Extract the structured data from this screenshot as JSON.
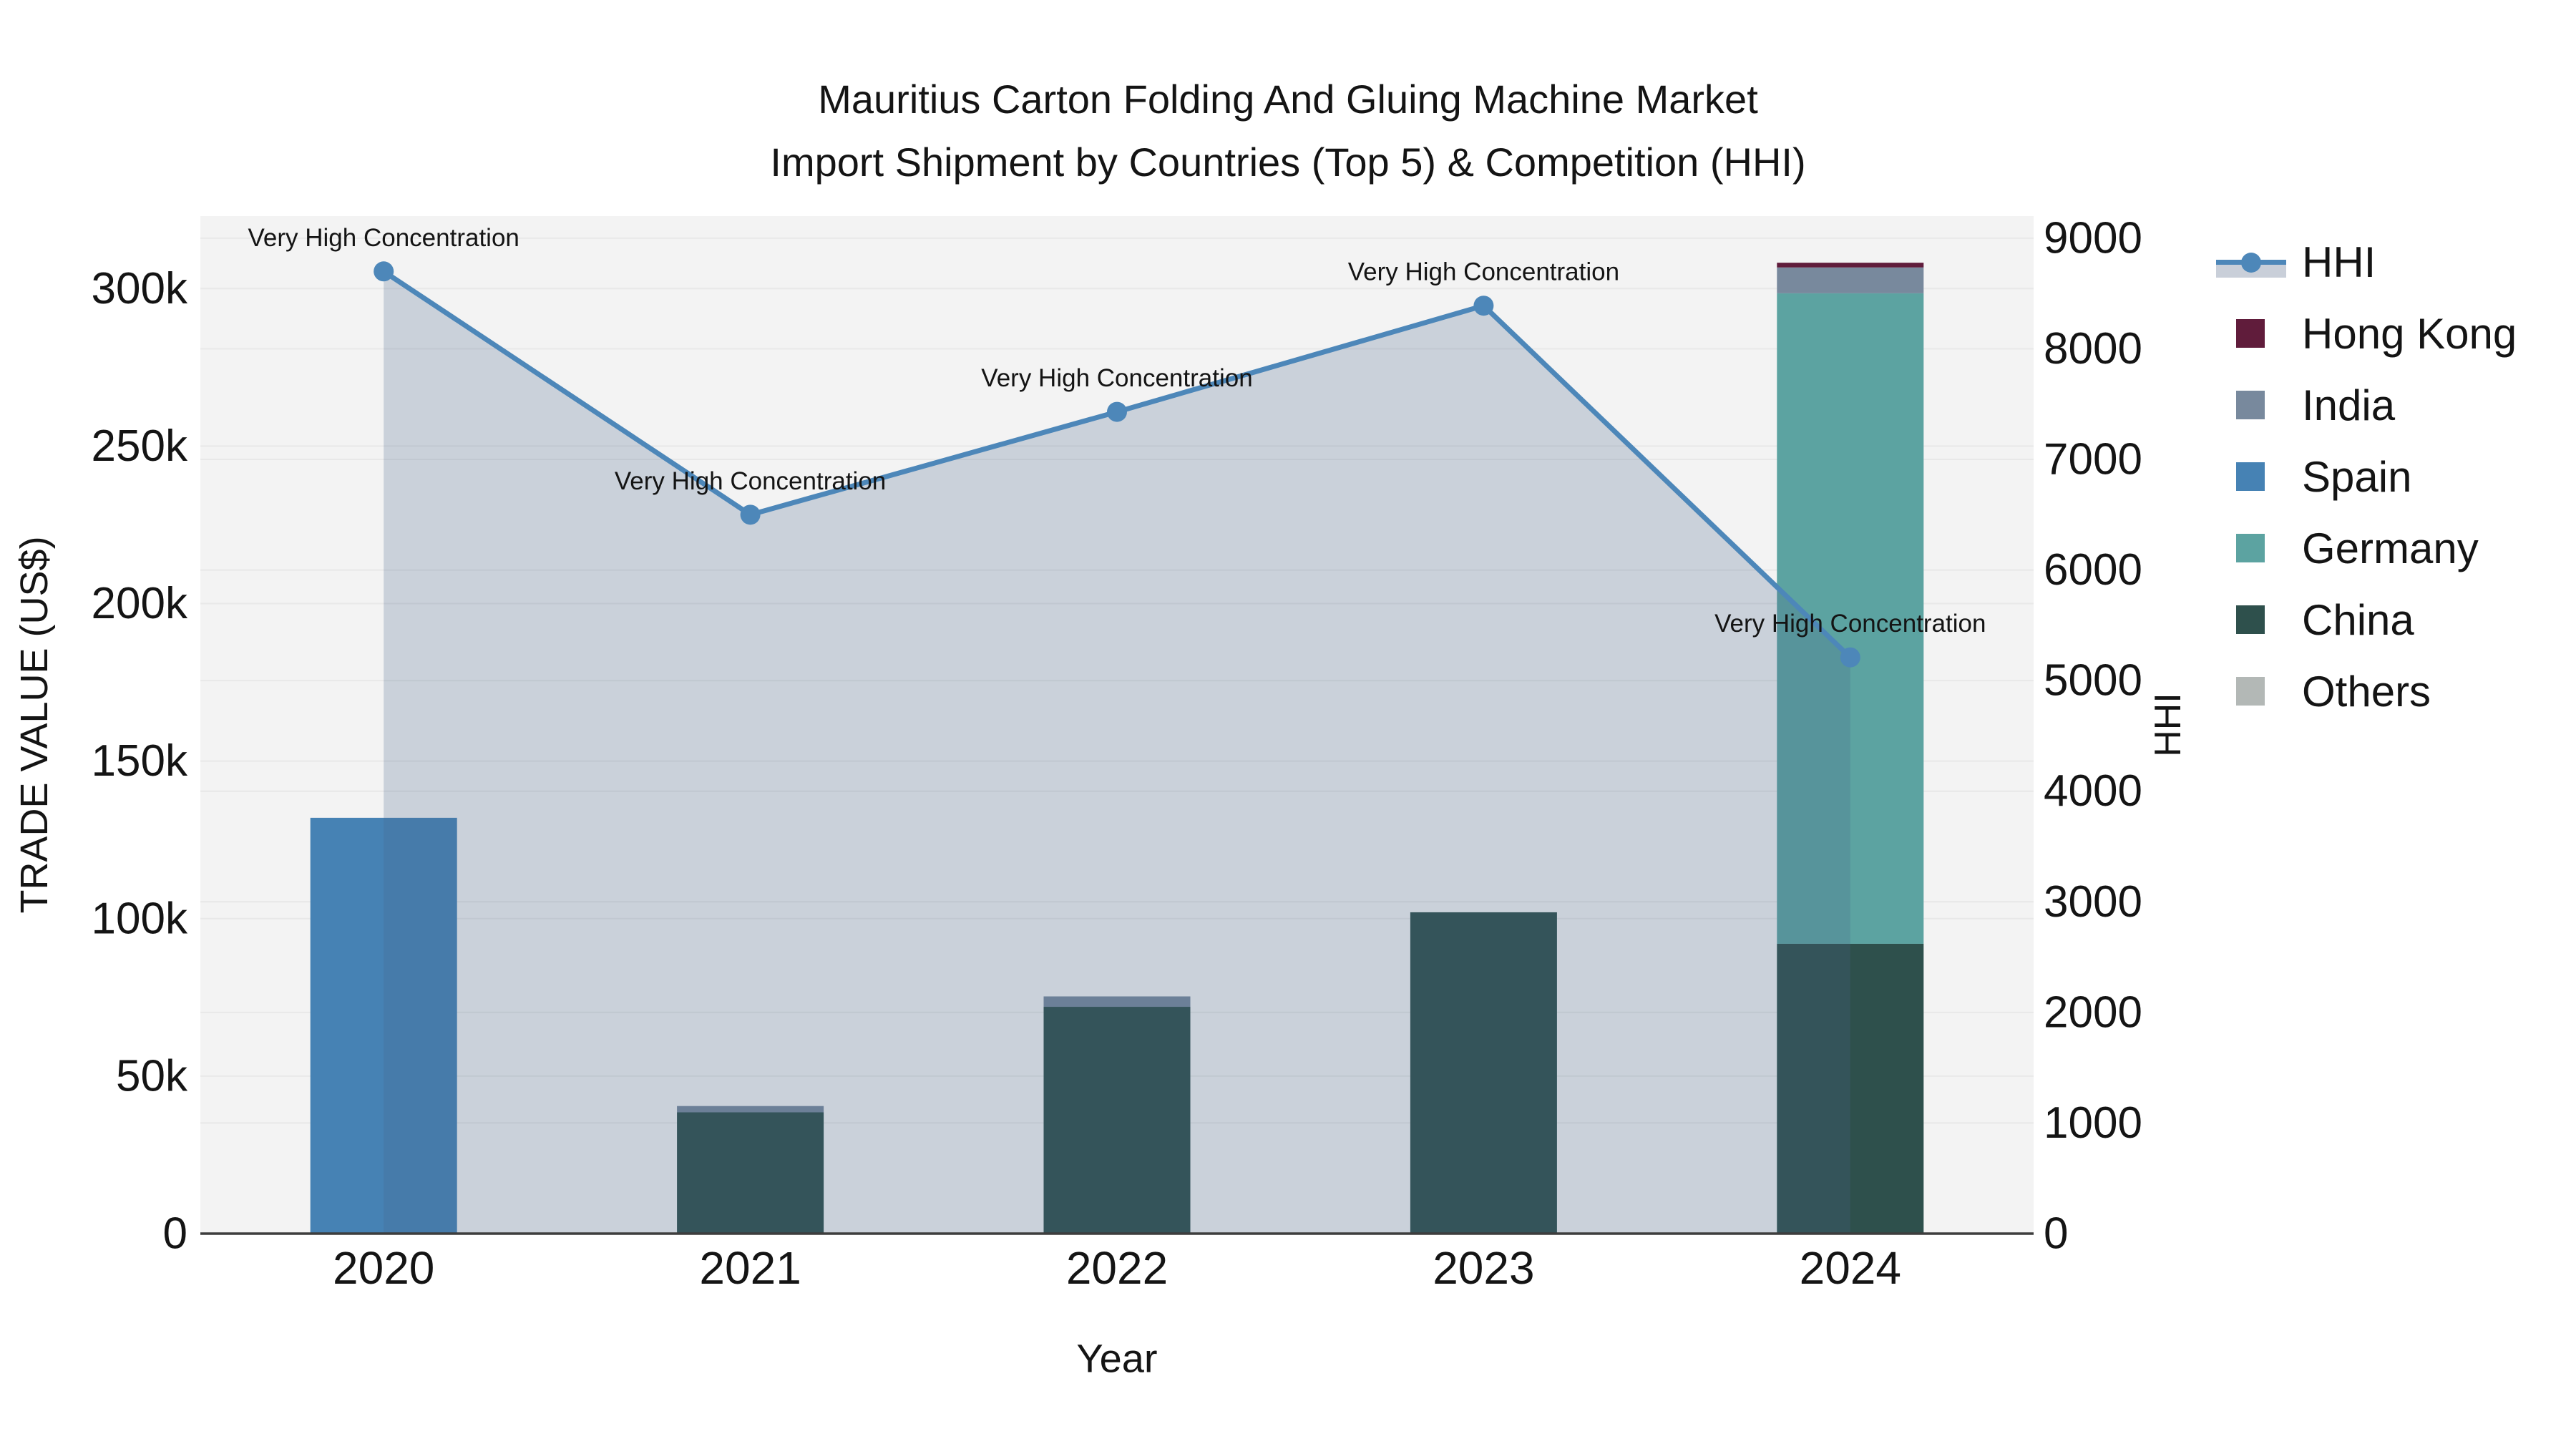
{
  "header": {
    "title_line1": "Mauritius Carton Folding And Gluing Machine Market",
    "title_line2": "Import Shipment by Countries (Top 5) & Competition (HHI)"
  },
  "chart_data": {
    "type": "bar",
    "subtype": "stacked-bars-with-line-overlay",
    "categories": [
      "2020",
      "2021",
      "2022",
      "2023",
      "2024"
    ],
    "xlabel": "Year",
    "ylabel_left": "TRADE VALUE (US$)",
    "ylabel_right": "HHI",
    "ylim_left": [
      0,
      323000
    ],
    "ylim_right": [
      0,
      9200
    ],
    "grid": true,
    "legend_position": "right",
    "yticks_left": {
      "values": [
        0,
        50000,
        100000,
        150000,
        200000,
        250000,
        300000
      ],
      "labels": [
        "0",
        "50k",
        "100k",
        "150k",
        "200k",
        "250k",
        "300k"
      ]
    },
    "yticks_right": {
      "values": [
        0,
        1000,
        2000,
        3000,
        4000,
        5000,
        6000,
        7000,
        8000,
        9000
      ],
      "labels": [
        "0",
        "1000",
        "2000",
        "3000",
        "4000",
        "5000",
        "6000",
        "7000",
        "8000",
        "9000"
      ]
    },
    "series": [
      {
        "name": "China",
        "color": "#2e504c",
        "values": [
          0,
          38500,
          72000,
          102000,
          92000
        ]
      },
      {
        "name": "Germany",
        "color": "#5ca3a1",
        "values": [
          0,
          0,
          0,
          0,
          206500
        ]
      },
      {
        "name": "Spain",
        "color": "#4682b4",
        "values": [
          132000,
          0,
          0,
          0,
          0
        ]
      },
      {
        "name": "India",
        "color": "#78899d",
        "values": [
          0,
          2000,
          3300,
          0,
          8200
        ]
      },
      {
        "name": "Hong Kong",
        "color": "#601c3b",
        "values": [
          0,
          0,
          0,
          0,
          1500
        ]
      },
      {
        "name": "Others",
        "color": "#b3b8b6",
        "values": [
          0,
          0,
          0,
          0,
          0
        ]
      }
    ],
    "line_series": {
      "name": "HHI",
      "color": "#4d87b9",
      "fill_color": "rgba(70,100,140,0.24)",
      "values": [
        8700,
        6500,
        7430,
        8390,
        5210
      ]
    },
    "annotation_text": "Very High Concentration",
    "annotated_points": [
      0,
      1,
      2,
      3,
      4
    ],
    "legend": [
      {
        "label": "HHI",
        "type": "line"
      },
      {
        "label": "Hong Kong",
        "type": "swatch",
        "color": "#601c3b"
      },
      {
        "label": "India",
        "type": "swatch",
        "color": "#78899d"
      },
      {
        "label": "Spain",
        "type": "swatch",
        "color": "#4682b4"
      },
      {
        "label": "Germany",
        "type": "swatch",
        "color": "#5ca3a1"
      },
      {
        "label": "China",
        "type": "swatch",
        "color": "#2e504c"
      },
      {
        "label": "Others",
        "type": "swatch",
        "color": "#b3b8b6"
      }
    ]
  },
  "styles": {
    "plot_bg": "#f3f3f3",
    "grid_color": "#e8e8e8",
    "axis_line_color": "#3d3d3d",
    "text_color": "#141414"
  }
}
